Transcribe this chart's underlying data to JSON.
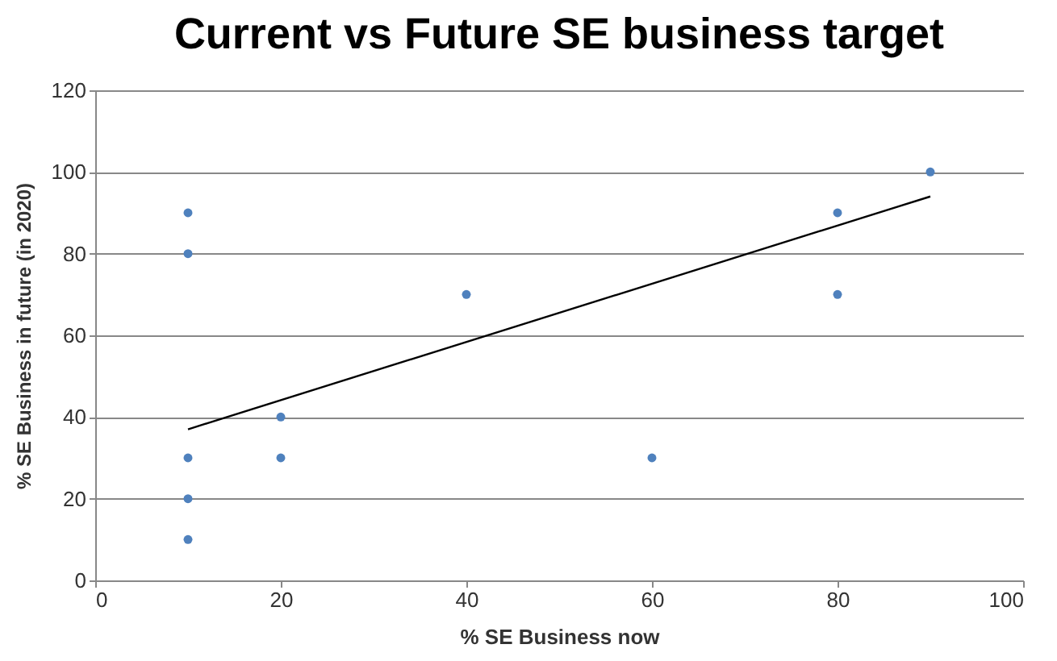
{
  "chart_data": {
    "type": "scatter",
    "title": "Current vs Future SE business target",
    "xlabel": "% SE Business now",
    "ylabel": "% SE Business  in future (in  2020)",
    "x": [
      10,
      10,
      10,
      10,
      10,
      20,
      20,
      40,
      60,
      80,
      80,
      90
    ],
    "series": [
      {
        "color": "#4f81bd",
        "marker": "circle",
        "values": [
          90,
          80,
          30,
          20,
          10,
          40,
          30,
          70,
          30,
          90,
          70,
          100
        ]
      },
      {
        "type": "line",
        "color": "#000000",
        "x": [
          10,
          90
        ],
        "values": [
          37,
          94
        ]
      }
    ],
    "xlim": [
      0,
      100
    ],
    "xticks": [
      0,
      20,
      40,
      60,
      80,
      100
    ],
    "ylim": [
      0,
      120
    ],
    "yticks": [
      0,
      20,
      40,
      60,
      80,
      100,
      120
    ],
    "grid": "y"
  }
}
